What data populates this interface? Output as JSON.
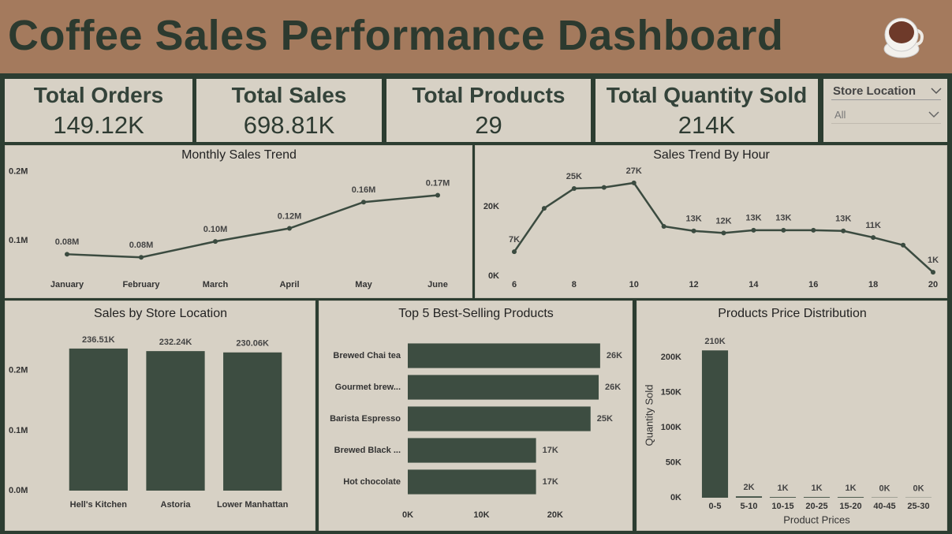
{
  "header": {
    "title": "Coffee Sales Performance Dashboard"
  },
  "kpis": [
    {
      "label": "Total Orders",
      "value": "149.12K"
    },
    {
      "label": "Total Sales",
      "value": "698.81K"
    },
    {
      "label": "Total Products",
      "value": "29"
    },
    {
      "label": "Total Quantity Sold",
      "value": "214K"
    }
  ],
  "slicer": {
    "label": "Store Location",
    "value": "All"
  },
  "chart_data": [
    {
      "type": "line",
      "title": "Monthly Sales Trend",
      "color": "#3b4b40",
      "grid": false,
      "categories": [
        "January",
        "February",
        "March",
        "April",
        "May",
        "June"
      ],
      "values": [
        80500,
        76000,
        99000,
        118000,
        156000,
        166000
      ],
      "value_labels": [
        "0.08M",
        "0.08M",
        "0.10M",
        "0.12M",
        "0.16M",
        "0.17M"
      ],
      "ylim": [
        50000,
        210000
      ],
      "yticks": [
        {
          "value": 100000,
          "label": "0.1M"
        },
        {
          "value": 200000,
          "label": "0.2M"
        }
      ]
    },
    {
      "type": "line",
      "title": "Sales Trend By Hour",
      "color": "#3b4b40",
      "grid": false,
      "x": [
        6,
        7,
        8,
        9,
        10,
        11,
        12,
        13,
        14,
        15,
        16,
        17,
        18,
        19,
        20
      ],
      "values": [
        7000,
        19500,
        25200,
        25500,
        26800,
        14300,
        13000,
        12400,
        13200,
        13200,
        13200,
        13000,
        11100,
        8900,
        1100
      ],
      "value_labels": [
        "7K",
        null,
        "25K",
        null,
        "27K",
        null,
        "13K",
        "12K",
        "13K",
        "13K",
        null,
        "13K",
        "11K",
        null,
        "1K"
      ],
      "xlim": [
        6,
        20
      ],
      "xticks": [
        6,
        8,
        10,
        12,
        14,
        16,
        18,
        20
      ],
      "ylim": [
        0,
        32000
      ],
      "yticks": [
        {
          "value": 0,
          "label": "0K"
        },
        {
          "value": 20000,
          "label": "20K"
        }
      ]
    },
    {
      "type": "bar",
      "title": "Sales by Store Location",
      "color": "#3d4d41",
      "grid": false,
      "categories": [
        "Hell's Kitchen",
        "Astoria",
        "Lower Manhattan"
      ],
      "values": [
        236510,
        232240,
        230060
      ],
      "value_labels": [
        "236.51K",
        "232.24K",
        "230.06K"
      ],
      "ylim": [
        0,
        260000
      ],
      "yticks": [
        {
          "value": 0,
          "label": "0.0M"
        },
        {
          "value": 100000,
          "label": "0.1M"
        },
        {
          "value": 200000,
          "label": "0.2M"
        }
      ]
    },
    {
      "type": "barh",
      "title": "Top 5 Best-Selling Products",
      "color": "#3d4d41",
      "grid": false,
      "categories": [
        "Brewed Chai tea",
        "Gourmet brew...",
        "Barista Espresso",
        "Brewed Black ...",
        "Hot chocolate"
      ],
      "values": [
        26100,
        25900,
        24800,
        17400,
        17400
      ],
      "value_labels": [
        "26K",
        "26K",
        "25K",
        "17K",
        "17K"
      ],
      "xlim": [
        0,
        29000
      ],
      "xticks": [
        {
          "value": 0,
          "label": "0K"
        },
        {
          "value": 10000,
          "label": "10K"
        },
        {
          "value": 20000,
          "label": "20K"
        }
      ]
    },
    {
      "type": "bar",
      "title": "Products Price Distribution",
      "color": "#3d4d41",
      "grid": false,
      "xlabel": "Product Prices",
      "ylabel": "Quantity Sold",
      "categories": [
        "0-5",
        "5-10",
        "10-15",
        "20-25",
        "15-20",
        "40-45",
        "25-30"
      ],
      "values": [
        210000,
        2000,
        1000,
        1000,
        1000,
        400,
        300
      ],
      "value_labels": [
        "210K",
        "2K",
        "1K",
        "1K",
        "1K",
        "0K",
        "0K"
      ],
      "ylim": [
        0,
        235000
      ],
      "yticks": [
        {
          "value": 0,
          "label": "0K"
        },
        {
          "value": 50000,
          "label": "50K"
        },
        {
          "value": 100000,
          "label": "100K"
        },
        {
          "value": 150000,
          "label": "150K"
        },
        {
          "value": 200000,
          "label": "200K"
        }
      ]
    }
  ]
}
